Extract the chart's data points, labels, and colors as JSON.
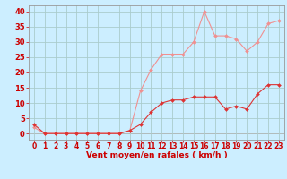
{
  "x": [
    0,
    1,
    2,
    3,
    4,
    5,
    6,
    7,
    8,
    9,
    10,
    11,
    12,
    13,
    14,
    15,
    16,
    17,
    18,
    19,
    20,
    21,
    22,
    23
  ],
  "y_mean": [
    3,
    0,
    0,
    0,
    0,
    0,
    0,
    0,
    0,
    1,
    3,
    7,
    10,
    11,
    11,
    12,
    12,
    12,
    8,
    9,
    8,
    13,
    16,
    16
  ],
  "y_gust": [
    2,
    0,
    0,
    0,
    0,
    0,
    0,
    0,
    0,
    1,
    14,
    21,
    26,
    26,
    26,
    30,
    40,
    32,
    32,
    31,
    27,
    30,
    36,
    37
  ],
  "color_mean": "#dd3333",
  "color_gust": "#f09090",
  "bg_color": "#cceeff",
  "grid_color": "#aacccc",
  "xlim": [
    -0.5,
    23.5
  ],
  "ylim": [
    -2,
    42
  ],
  "yticks": [
    0,
    5,
    10,
    15,
    20,
    25,
    30,
    35,
    40
  ],
  "xticks": [
    0,
    1,
    2,
    3,
    4,
    5,
    6,
    7,
    8,
    9,
    10,
    11,
    12,
    13,
    14,
    15,
    16,
    17,
    18,
    19,
    20,
    21,
    22,
    23
  ],
  "xlabel": "Vent moyen/en rafales ( km/h )",
  "tick_color": "#cc0000",
  "label_color": "#cc0000",
  "xlabel_fontsize": 6.5,
  "ytick_fontsize": 6.0,
  "xtick_fontsize": 5.5,
  "markersize": 2.0,
  "linewidth": 0.8
}
